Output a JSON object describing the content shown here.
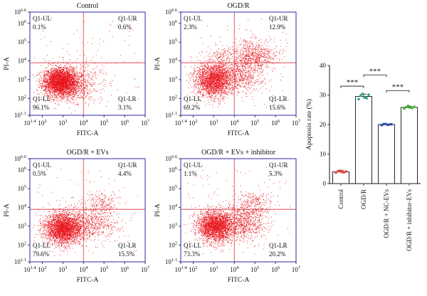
{
  "chart_data": [
    {
      "type": "scatter",
      "title": "Control",
      "xlabel": "FITC-A",
      "ylabel": "PI-A",
      "x_log_range": [
        1.4,
        7
      ],
      "y_log_range": [
        1.1,
        6.6
      ],
      "x_ticks": [
        {
          "exp": "1.4",
          "v": 1.4
        },
        {
          "exp": "2",
          "v": 2
        },
        {
          "exp": "3",
          "v": 3
        },
        {
          "exp": "4",
          "v": 4
        },
        {
          "exp": "5",
          "v": 5
        },
        {
          "exp": "6",
          "v": 6
        },
        {
          "exp": "7",
          "v": 7
        }
      ],
      "y_ticks": [
        {
          "exp": "1.1",
          "v": 1.1
        },
        {
          "exp": "2",
          "v": 2
        },
        {
          "exp": "3",
          "v": 3
        },
        {
          "exp": "4",
          "v": 4
        },
        {
          "exp": "5",
          "v": 5
        },
        {
          "exp": "6",
          "v": 6
        },
        {
          "exp": "6.6",
          "v": 6.6
        }
      ],
      "gate_x": 4.0,
      "gate_y": 3.9,
      "quadrants": [
        {
          "pos": "ul",
          "name": "Q1-UL",
          "value": "0.1%"
        },
        {
          "pos": "ur",
          "name": "Q1-UR",
          "value": "0.6%"
        },
        {
          "pos": "ll",
          "name": "Q1-LL",
          "value": "96.1%"
        },
        {
          "pos": "lr",
          "name": "Q1-LR",
          "value": "3.1%"
        }
      ],
      "clusters": [
        {
          "cx": 2.9,
          "cy": 2.9,
          "sx": 0.42,
          "sy": 0.38,
          "n": 3200
        },
        {
          "cx": 3.4,
          "cy": 2.7,
          "sx": 0.6,
          "sy": 0.5,
          "n": 500
        },
        {
          "cx": 4.3,
          "cy": 3.0,
          "sx": 0.5,
          "sy": 0.5,
          "n": 120
        }
      ],
      "seed": 11
    },
    {
      "type": "scatter",
      "title": "OGD/R",
      "xlabel": "FITC-A",
      "ylabel": "PI-A",
      "x_log_range": [
        1.4,
        7
      ],
      "y_log_range": [
        1.1,
        6.6
      ],
      "x_ticks": [
        {
          "exp": "1.4",
          "v": 1.4
        },
        {
          "exp": "2",
          "v": 2
        },
        {
          "exp": "3",
          "v": 3
        },
        {
          "exp": "4",
          "v": 4
        },
        {
          "exp": "5",
          "v": 5
        },
        {
          "exp": "6",
          "v": 6
        },
        {
          "exp": "7",
          "v": 7
        }
      ],
      "y_ticks": [
        {
          "exp": "1.1",
          "v": 1.1
        },
        {
          "exp": "2",
          "v": 2
        },
        {
          "exp": "3",
          "v": 3
        },
        {
          "exp": "4",
          "v": 4
        },
        {
          "exp": "5",
          "v": 5
        },
        {
          "exp": "6",
          "v": 6
        },
        {
          "exp": "6.6",
          "v": 6.6
        }
      ],
      "gate_x": 4.0,
      "gate_y": 3.9,
      "quadrants": [
        {
          "pos": "ul",
          "name": "Q1-UL",
          "value": "2.3%"
        },
        {
          "pos": "ur",
          "name": "Q1-UR",
          "value": "12.9%"
        },
        {
          "pos": "ll",
          "name": "Q1-LL",
          "value": "69.2%"
        },
        {
          "pos": "lr",
          "name": "Q1-LR",
          "value": "15.6%"
        }
      ],
      "clusters": [
        {
          "cx": 3.0,
          "cy": 3.0,
          "sx": 0.45,
          "sy": 0.45,
          "n": 2300
        },
        {
          "cx": 4.4,
          "cy": 3.2,
          "sx": 0.5,
          "sy": 0.45,
          "n": 520
        },
        {
          "cx": 4.9,
          "cy": 4.3,
          "sx": 0.6,
          "sy": 0.4,
          "n": 700
        },
        {
          "cx": 3.3,
          "cy": 4.2,
          "sx": 0.3,
          "sy": 0.3,
          "n": 100
        }
      ],
      "seed": 23
    },
    {
      "type": "scatter",
      "title": "OGD/R + EVs",
      "xlabel": "FITC-A",
      "ylabel": "PI-A",
      "x_log_range": [
        1.4,
        7
      ],
      "y_log_range": [
        1.1,
        6.6
      ],
      "x_ticks": [
        {
          "exp": "1.4",
          "v": 1.4
        },
        {
          "exp": "2",
          "v": 2
        },
        {
          "exp": "3",
          "v": 3
        },
        {
          "exp": "4",
          "v": 4
        },
        {
          "exp": "5",
          "v": 5
        },
        {
          "exp": "6",
          "v": 6
        },
        {
          "exp": "7",
          "v": 7
        }
      ],
      "y_ticks": [
        {
          "exp": "1.1",
          "v": 1.1
        },
        {
          "exp": "2",
          "v": 2
        },
        {
          "exp": "3",
          "v": 3
        },
        {
          "exp": "4",
          "v": 4
        },
        {
          "exp": "5",
          "v": 5
        },
        {
          "exp": "6",
          "v": 6
        },
        {
          "exp": "6.6",
          "v": 6.6
        }
      ],
      "gate_x": 4.0,
      "gate_y": 3.9,
      "quadrants": [
        {
          "pos": "ul",
          "name": "Q1-UL",
          "value": "0.5%"
        },
        {
          "pos": "ur",
          "name": "Q1-UR",
          "value": "4.4%"
        },
        {
          "pos": "ll",
          "name": "Q1-LL",
          "value": "79.6%"
        },
        {
          "pos": "lr",
          "name": "Q1-LR",
          "value": "15.5%"
        }
      ],
      "clusters": [
        {
          "cx": 3.0,
          "cy": 2.9,
          "sx": 0.45,
          "sy": 0.42,
          "n": 2800
        },
        {
          "cx": 4.4,
          "cy": 3.1,
          "sx": 0.55,
          "sy": 0.45,
          "n": 560
        },
        {
          "cx": 4.8,
          "cy": 4.2,
          "sx": 0.5,
          "sy": 0.35,
          "n": 220
        }
      ],
      "seed": 37
    },
    {
      "type": "scatter",
      "title": "OGD/R + EVs + inhibitor",
      "xlabel": "FITC-A",
      "ylabel": "PI-A",
      "x_log_range": [
        1.4,
        7
      ],
      "y_log_range": [
        1.1,
        6.6
      ],
      "x_ticks": [
        {
          "exp": "1.4",
          "v": 1.4
        },
        {
          "exp": "2",
          "v": 2
        },
        {
          "exp": "3",
          "v": 3
        },
        {
          "exp": "4",
          "v": 4
        },
        {
          "exp": "5",
          "v": 5
        },
        {
          "exp": "6",
          "v": 6
        },
        {
          "exp": "7",
          "v": 7
        }
      ],
      "y_ticks": [
        {
          "exp": "1.1",
          "v": 1.1
        },
        {
          "exp": "2",
          "v": 2
        },
        {
          "exp": "3",
          "v": 3
        },
        {
          "exp": "4",
          "v": 4
        },
        {
          "exp": "5",
          "v": 5
        },
        {
          "exp": "6",
          "v": 6
        },
        {
          "exp": "6.6",
          "v": 6.6
        }
      ],
      "gate_x": 4.0,
      "gate_y": 3.9,
      "quadrants": [
        {
          "pos": "ul",
          "name": "Q1-UL",
          "value": "1.1%"
        },
        {
          "pos": "ur",
          "name": "Q1-UR",
          "value": "5.3%"
        },
        {
          "pos": "ll",
          "name": "Q1-LL",
          "value": "73.3%"
        },
        {
          "pos": "lr",
          "name": "Q1-LR",
          "value": "20.2%"
        }
      ],
      "clusters": [
        {
          "cx": 3.1,
          "cy": 3.0,
          "sx": 0.45,
          "sy": 0.42,
          "n": 2500
        },
        {
          "cx": 4.5,
          "cy": 3.2,
          "sx": 0.55,
          "sy": 0.45,
          "n": 720
        },
        {
          "cx": 4.9,
          "cy": 4.2,
          "sx": 0.55,
          "sy": 0.35,
          "n": 280
        }
      ],
      "seed": 53
    },
    {
      "type": "bar",
      "title": "",
      "xlabel": "",
      "ylabel": "Apoptosis rate (%)",
      "ylim": [
        0,
        40
      ],
      "yticks": [
        0,
        10,
        20,
        30,
        40
      ],
      "categories": [
        "Control",
        "OGD/R",
        "OGD/R + NC-EVs",
        "OGD/R + inhibitor-EVs"
      ],
      "values": [
        4.0,
        29.5,
        20.0,
        25.8
      ],
      "errors": [
        0.4,
        0.8,
        0.2,
        0.4
      ],
      "points": [
        [
          3.7,
          4.2,
          4.4,
          3.9,
          3.8,
          4.1
        ],
        [
          28.6,
          29.8,
          30.4,
          29.2,
          28.9,
          30.1
        ],
        [
          19.8,
          20.1,
          20.2,
          19.9,
          20.0,
          20.1
        ],
        [
          25.4,
          25.9,
          26.3,
          25.7,
          25.6,
          26.0
        ]
      ],
      "point_colors": [
        "#e8473a",
        "#2aa88e",
        "#2f4ea8",
        "#4cae3e"
      ],
      "significance": [
        {
          "from": 0,
          "to": 1,
          "label": "***"
        },
        {
          "from": 1,
          "to": 2,
          "label": "***"
        },
        {
          "from": 2,
          "to": 3,
          "label": "***"
        }
      ],
      "grid": false
    }
  ],
  "colors": {
    "scatter_dot": "#e8141c",
    "gate_line": "#e0313a",
    "plot_frame": "#2a2aa8",
    "axis": "#111111"
  }
}
